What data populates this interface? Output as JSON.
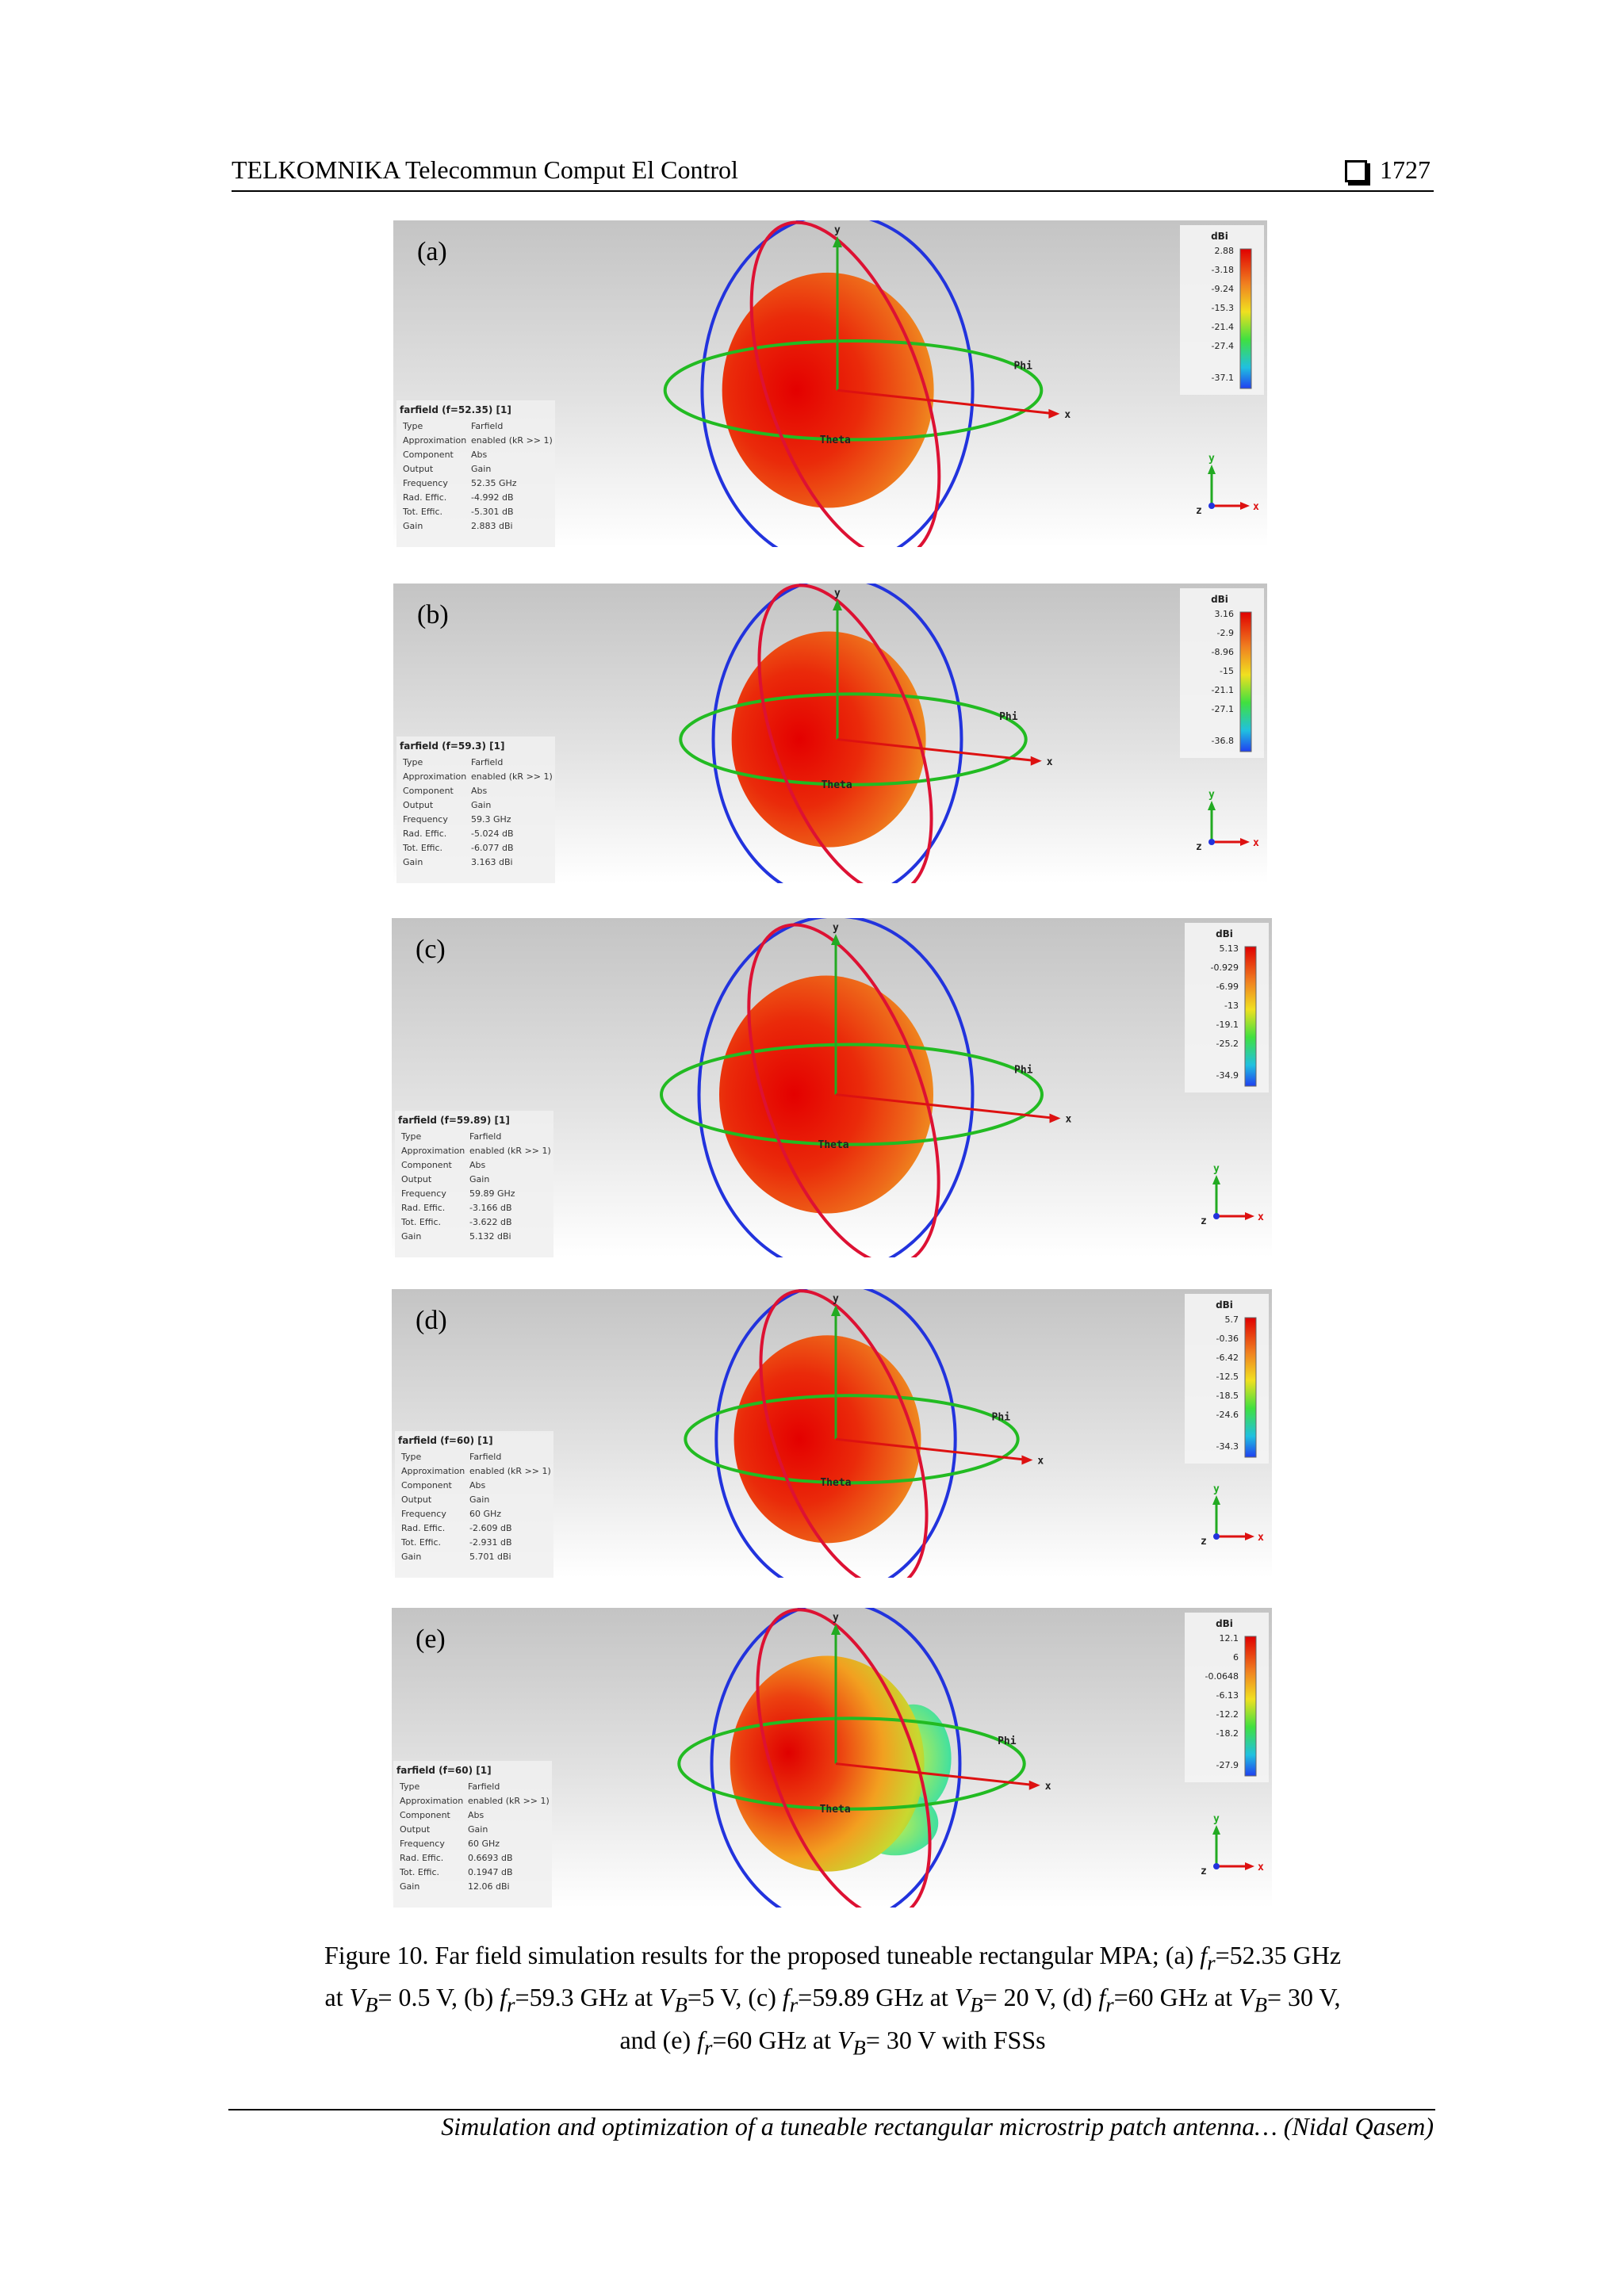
{
  "header": {
    "journal": "TELKOMNIKA Telecommun Comput El Control",
    "page_number": "1727"
  },
  "axis_labels": {
    "x": "x",
    "y": "y",
    "z": "z",
    "phi": "Phi",
    "theta": "Theta",
    "colorbar_unit": "dBi"
  },
  "info_keys": [
    "Type",
    "Approximation",
    "Component",
    "Output",
    "Frequency",
    "Rad. Effic.",
    "Tot. Effic.",
    "Gain"
  ],
  "panels": [
    {
      "label": "(a)",
      "title": "farfield (f=52.35) [1]",
      "values": [
        "Farfield",
        "enabled (kR >> 1)",
        "Abs",
        "Gain",
        "52.35 GHz",
        "-4.992 dB",
        "-5.301 dB",
        "2.883 dBi"
      ],
      "scale": [
        "2.88",
        "-3.18",
        "-9.24",
        "-15.3",
        "-21.4",
        "-27.4",
        "-37.1"
      ]
    },
    {
      "label": "(b)",
      "title": "farfield (f=59.3) [1]",
      "values": [
        "Farfield",
        "enabled (kR >> 1)",
        "Abs",
        "Gain",
        "59.3 GHz",
        "-5.024 dB",
        "-6.077 dB",
        "3.163 dBi"
      ],
      "scale": [
        "3.16",
        "-2.9",
        "-8.96",
        "-15",
        "-21.1",
        "-27.1",
        "-36.8"
      ]
    },
    {
      "label": "(c)",
      "title": "farfield (f=59.89) [1]",
      "values": [
        "Farfield",
        "enabled (kR >> 1)",
        "Abs",
        "Gain",
        "59.89 GHz",
        "-3.166 dB",
        "-3.622 dB",
        "5.132 dBi"
      ],
      "scale": [
        "5.13",
        "-0.929",
        "-6.99",
        "-13",
        "-19.1",
        "-25.2",
        "-34.9"
      ]
    },
    {
      "label": "(d)",
      "title": "farfield (f=60) [1]",
      "values": [
        "Farfield",
        "enabled (kR >> 1)",
        "Abs",
        "Gain",
        "60 GHz",
        "-2.609 dB",
        "-2.931 dB",
        "5.701 dBi"
      ],
      "scale": [
        "5.7",
        "-0.36",
        "-6.42",
        "-12.5",
        "-18.5",
        "-24.6",
        "-34.3"
      ]
    },
    {
      "label": "(e)",
      "title": "farfield (f=60) [1]",
      "values": [
        "Farfield",
        "enabled (kR >> 1)",
        "Abs",
        "Gain",
        "60 GHz",
        "0.6693 dB",
        "0.1947 dB",
        "12.06 dBi"
      ],
      "scale": [
        "12.1",
        "6",
        "-0.0648",
        "-6.13",
        "-12.2",
        "-18.2",
        "-27.9"
      ]
    }
  ],
  "caption": {
    "p1": "Figure 10. Far field simulation results for the proposed tuneable rectangular MPA; (a) ",
    "f": "f",
    "r": "r",
    "V": "V",
    "B": "B",
    "p2": "=52.35 GHz",
    "p3": "at ",
    "p4": "= 0.5 V, (b) ",
    "p5": "=59.3 GHz at ",
    "p6": "=5 V, (c) ",
    "p7": "=59.89 GHz at ",
    "p8": "= 20 V, (d) ",
    "p9": "=60 GHz at ",
    "p10": "= 30 V,",
    "p11": "and (e) ",
    "p12": "=60 GHz at ",
    "p13": "= 30 V with FSSs"
  },
  "footer": "Simulation and optimization of a tuneable rectangular microstrip patch antenna… (Nidal Qasem)"
}
